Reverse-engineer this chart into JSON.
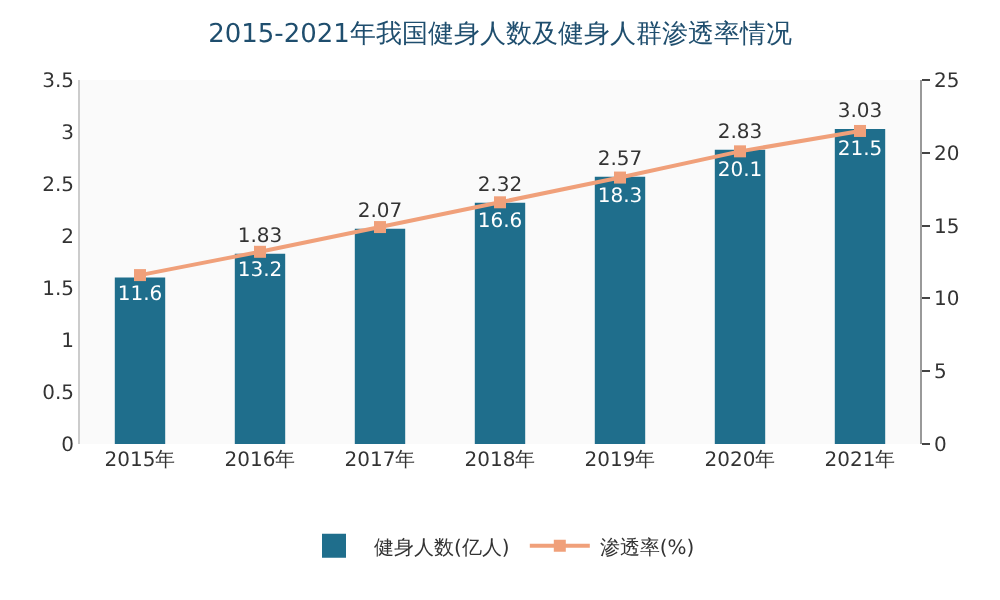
{
  "chart_data": {
    "type": "bar",
    "title": "2015-2021年我国健身人数及健身人群渗透率情况",
    "categories": [
      "2015年",
      "2016年",
      "2017年",
      "2018年",
      "2019年",
      "2020年",
      "2021年"
    ],
    "series": [
      {
        "name": "健身人数(亿人)",
        "color": "#1f6e8c",
        "values": [
          1.6,
          1.83,
          2.07,
          2.32,
          2.57,
          2.83,
          3.03
        ],
        "value_labels": [
          null,
          "1.83",
          "2.07",
          "2.32",
          "2.57",
          "2.83",
          "3.03"
        ]
      },
      {
        "name": "渗透率(%)",
        "type": "line",
        "axis": "y2",
        "color": "#f0a07a",
        "values": [
          11.6,
          13.2,
          14.9,
          16.6,
          18.3,
          20.1,
          21.5
        ],
        "value_labels": [
          "11.6",
          "13.2",
          null,
          "16.6",
          "18.3",
          "20.1",
          "21.5"
        ]
      }
    ],
    "ylim": [
      0,
      3.5
    ],
    "yticks": [
      0,
      0.5,
      1,
      1.5,
      2,
      2.5,
      3,
      3.5
    ],
    "y2lim": [
      0,
      25
    ],
    "y2ticks": [
      0,
      5,
      10,
      15,
      20,
      25
    ],
    "grid": false,
    "legend": "bottom",
    "marker": "square",
    "line_style": "solid"
  }
}
